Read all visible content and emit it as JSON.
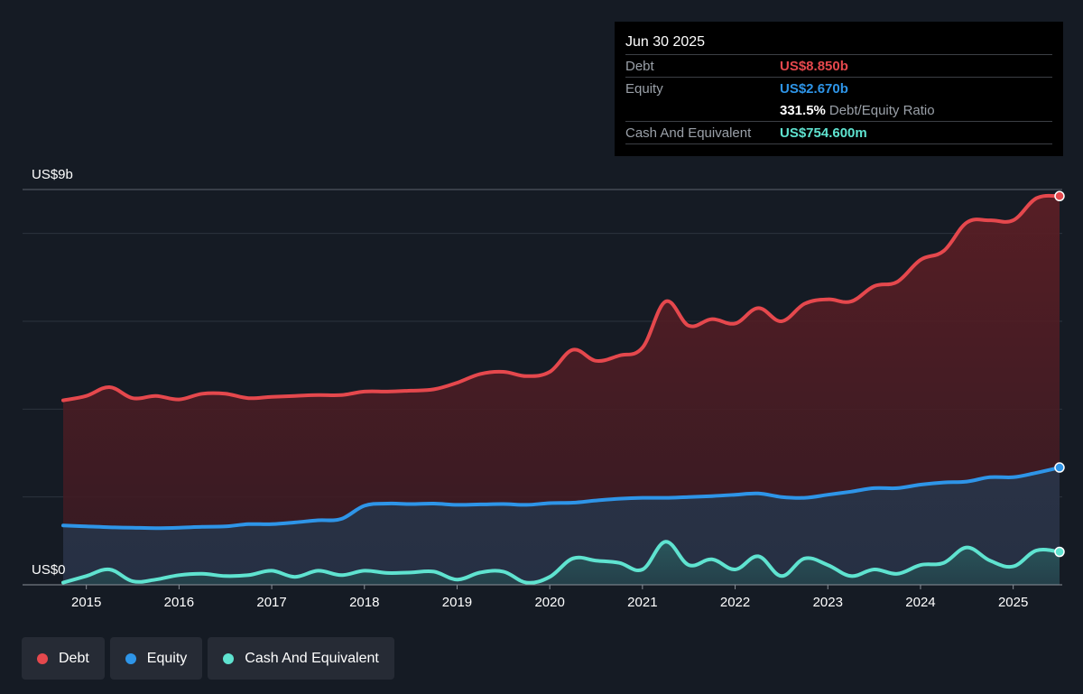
{
  "tooltip": {
    "date": "Jun 30 2025",
    "debt_label": "Debt",
    "debt_value": "US$8.850b",
    "equity_label": "Equity",
    "equity_value": "US$2.670b",
    "ratio_value": "331.5%",
    "ratio_label": "Debt/Equity Ratio",
    "cash_label": "Cash And Equivalent",
    "cash_value": "US$754.600m"
  },
  "legend": [
    {
      "label": "Debt",
      "color": "#e5484d"
    },
    {
      "label": "Equity",
      "color": "#2e95e8"
    },
    {
      "label": "Cash And Equivalent",
      "color": "#5fe3d0"
    }
  ],
  "chart_data": {
    "type": "area",
    "y_top_label": "US$9b",
    "y_bottom_label": "US$0",
    "ylim": [
      0,
      9
    ],
    "xlim": [
      2014.55,
      2025.5
    ],
    "x_ticks": [
      {
        "value": 2015,
        "label": "2015"
      },
      {
        "value": 2016,
        "label": "2016"
      },
      {
        "value": 2017,
        "label": "2017"
      },
      {
        "value": 2018,
        "label": "2018"
      },
      {
        "value": 2019,
        "label": "2019"
      },
      {
        "value": 2020,
        "label": "2020"
      },
      {
        "value": 2021,
        "label": "2021"
      },
      {
        "value": 2022,
        "label": "2022"
      },
      {
        "value": 2023,
        "label": "2023"
      },
      {
        "value": 2024,
        "label": "2024"
      },
      {
        "value": 2025,
        "label": "2025"
      }
    ],
    "gridlines": [
      0,
      2,
      4,
      6,
      8,
      9
    ],
    "series": [
      {
        "name": "Debt",
        "color": "#e5484d",
        "points": [
          [
            2014.75,
            4.2
          ],
          [
            2015.0,
            4.3
          ],
          [
            2015.25,
            4.5
          ],
          [
            2015.5,
            4.25
          ],
          [
            2015.75,
            4.3
          ],
          [
            2016.0,
            4.22
          ],
          [
            2016.25,
            4.35
          ],
          [
            2016.5,
            4.35
          ],
          [
            2016.75,
            4.25
          ],
          [
            2017.0,
            4.28
          ],
          [
            2017.25,
            4.3
          ],
          [
            2017.5,
            4.32
          ],
          [
            2017.75,
            4.32
          ],
          [
            2018.0,
            4.4
          ],
          [
            2018.25,
            4.4
          ],
          [
            2018.5,
            4.42
          ],
          [
            2018.75,
            4.45
          ],
          [
            2019.0,
            4.6
          ],
          [
            2019.25,
            4.8
          ],
          [
            2019.5,
            4.85
          ],
          [
            2019.75,
            4.75
          ],
          [
            2020.0,
            4.85
          ],
          [
            2020.25,
            5.35
          ],
          [
            2020.5,
            5.1
          ],
          [
            2020.75,
            5.22
          ],
          [
            2021.0,
            5.4
          ],
          [
            2021.25,
            6.45
          ],
          [
            2021.5,
            5.9
          ],
          [
            2021.75,
            6.05
          ],
          [
            2022.0,
            5.95
          ],
          [
            2022.25,
            6.3
          ],
          [
            2022.5,
            6.0
          ],
          [
            2022.75,
            6.4
          ],
          [
            2023.0,
            6.5
          ],
          [
            2023.25,
            6.45
          ],
          [
            2023.5,
            6.8
          ],
          [
            2023.75,
            6.9
          ],
          [
            2024.0,
            7.4
          ],
          [
            2024.25,
            7.6
          ],
          [
            2024.5,
            8.25
          ],
          [
            2024.75,
            8.3
          ],
          [
            2025.0,
            8.3
          ],
          [
            2025.25,
            8.8
          ],
          [
            2025.5,
            8.85
          ]
        ]
      },
      {
        "name": "Equity",
        "color": "#2e95e8",
        "points": [
          [
            2014.75,
            1.35
          ],
          [
            2015.0,
            1.33
          ],
          [
            2015.25,
            1.31
          ],
          [
            2015.5,
            1.3
          ],
          [
            2015.75,
            1.29
          ],
          [
            2016.0,
            1.3
          ],
          [
            2016.25,
            1.32
          ],
          [
            2016.5,
            1.33
          ],
          [
            2016.75,
            1.38
          ],
          [
            2017.0,
            1.38
          ],
          [
            2017.25,
            1.42
          ],
          [
            2017.5,
            1.47
          ],
          [
            2017.75,
            1.5
          ],
          [
            2018.0,
            1.8
          ],
          [
            2018.25,
            1.85
          ],
          [
            2018.5,
            1.84
          ],
          [
            2018.75,
            1.85
          ],
          [
            2019.0,
            1.82
          ],
          [
            2019.25,
            1.83
          ],
          [
            2019.5,
            1.84
          ],
          [
            2019.75,
            1.82
          ],
          [
            2020.0,
            1.86
          ],
          [
            2020.25,
            1.87
          ],
          [
            2020.5,
            1.92
          ],
          [
            2020.75,
            1.96
          ],
          [
            2021.0,
            1.98
          ],
          [
            2021.25,
            1.98
          ],
          [
            2021.5,
            2.0
          ],
          [
            2021.75,
            2.02
          ],
          [
            2022.0,
            2.05
          ],
          [
            2022.25,
            2.08
          ],
          [
            2022.5,
            2.0
          ],
          [
            2022.75,
            1.98
          ],
          [
            2023.0,
            2.05
          ],
          [
            2023.25,
            2.12
          ],
          [
            2023.5,
            2.2
          ],
          [
            2023.75,
            2.2
          ],
          [
            2024.0,
            2.28
          ],
          [
            2024.25,
            2.33
          ],
          [
            2024.5,
            2.35
          ],
          [
            2024.75,
            2.45
          ],
          [
            2025.0,
            2.45
          ],
          [
            2025.25,
            2.55
          ],
          [
            2025.5,
            2.67
          ]
        ]
      },
      {
        "name": "Cash And Equivalent",
        "color": "#5fe3d0",
        "points": [
          [
            2014.75,
            0.05
          ],
          [
            2015.0,
            0.2
          ],
          [
            2015.25,
            0.35
          ],
          [
            2015.5,
            0.08
          ],
          [
            2015.75,
            0.12
          ],
          [
            2016.0,
            0.22
          ],
          [
            2016.25,
            0.25
          ],
          [
            2016.5,
            0.2
          ],
          [
            2016.75,
            0.22
          ],
          [
            2017.0,
            0.32
          ],
          [
            2017.25,
            0.18
          ],
          [
            2017.5,
            0.32
          ],
          [
            2017.75,
            0.22
          ],
          [
            2018.0,
            0.32
          ],
          [
            2018.25,
            0.27
          ],
          [
            2018.5,
            0.28
          ],
          [
            2018.75,
            0.3
          ],
          [
            2019.0,
            0.12
          ],
          [
            2019.25,
            0.28
          ],
          [
            2019.5,
            0.3
          ],
          [
            2019.75,
            0.05
          ],
          [
            2020.0,
            0.18
          ],
          [
            2020.25,
            0.6
          ],
          [
            2020.5,
            0.55
          ],
          [
            2020.75,
            0.5
          ],
          [
            2021.0,
            0.35
          ],
          [
            2021.25,
            0.98
          ],
          [
            2021.5,
            0.45
          ],
          [
            2021.75,
            0.58
          ],
          [
            2022.0,
            0.35
          ],
          [
            2022.25,
            0.65
          ],
          [
            2022.5,
            0.2
          ],
          [
            2022.75,
            0.6
          ],
          [
            2023.0,
            0.45
          ],
          [
            2023.25,
            0.2
          ],
          [
            2023.5,
            0.35
          ],
          [
            2023.75,
            0.25
          ],
          [
            2024.0,
            0.45
          ],
          [
            2024.25,
            0.5
          ],
          [
            2024.5,
            0.85
          ],
          [
            2024.75,
            0.55
          ],
          [
            2025.0,
            0.42
          ],
          [
            2025.25,
            0.78
          ],
          [
            2025.5,
            0.75
          ]
        ]
      }
    ]
  }
}
